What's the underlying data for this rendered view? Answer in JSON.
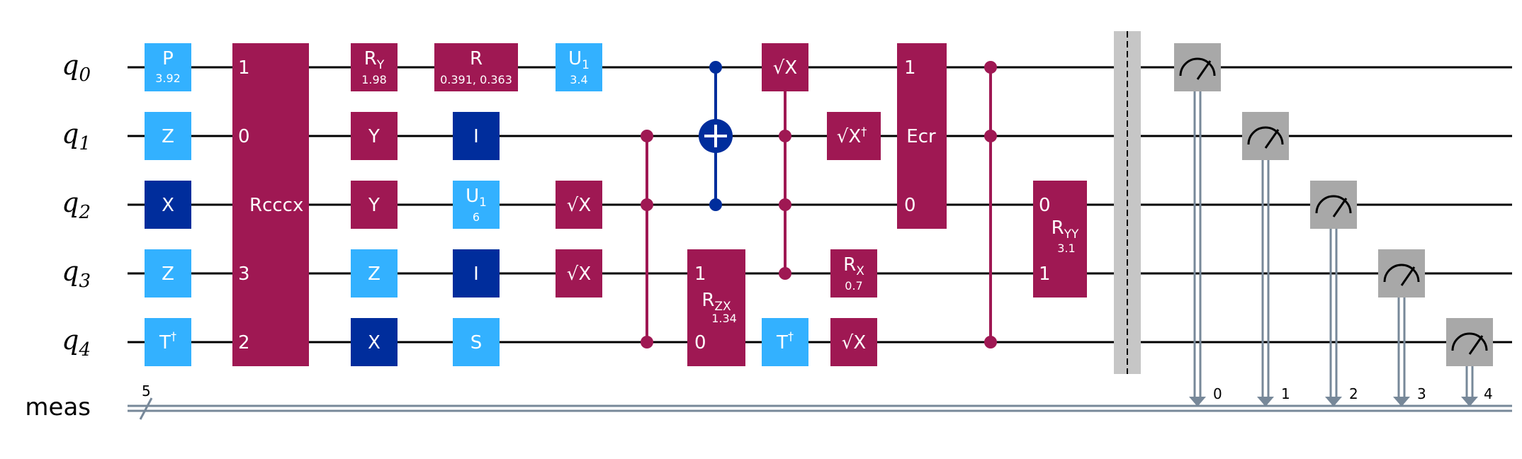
{
  "colors": {
    "light_blue": "#33b1ff",
    "dark_blue": "#002d9c",
    "magenta": "#9f1853",
    "gray": "#a8a8a8",
    "barrier": "#c6c6c6",
    "classical": "#778899",
    "wire": "#000000"
  },
  "wires": [
    {
      "id": "q0",
      "base": "q",
      "sub": "0"
    },
    {
      "id": "q1",
      "base": "q",
      "sub": "1"
    },
    {
      "id": "q2",
      "base": "q",
      "sub": "2"
    },
    {
      "id": "q3",
      "base": "q",
      "sub": "3"
    },
    {
      "id": "q4",
      "base": "q",
      "sub": "4"
    }
  ],
  "classical_register": {
    "name": "meas",
    "size": "5",
    "bits": [
      "0",
      "1",
      "2",
      "3",
      "4"
    ]
  },
  "gates": {
    "p_q0": {
      "name": "P",
      "param": "3.92"
    },
    "z_q1": {
      "name": "Z"
    },
    "x_q2": {
      "name": "X"
    },
    "z_q3": {
      "name": "Z"
    },
    "tdg_q4": {
      "name": "T",
      "sup": "†"
    },
    "rcccx": {
      "name": "Rcccx",
      "ports": [
        "1",
        "0",
        "3",
        "2"
      ]
    },
    "ry_q0": {
      "name": "R",
      "sub": "Y",
      "param": "1.98"
    },
    "y_q1": {
      "name": "Y"
    },
    "y_q2": {
      "name": "Y"
    },
    "z2_q3": {
      "name": "Z"
    },
    "x2_q4": {
      "name": "X"
    },
    "r_q0": {
      "name": "R",
      "param": "0.391, 0.363"
    },
    "i_q1": {
      "name": "I"
    },
    "u1_q2": {
      "name": "U",
      "sub": "1",
      "param": "6"
    },
    "i_q3": {
      "name": "I"
    },
    "s_q4": {
      "name": "S"
    },
    "u1_q0": {
      "name": "U",
      "sub": "1",
      "param": "3.4"
    },
    "sx_q2": {
      "name": "√X"
    },
    "sx_q3": {
      "name": "√X"
    },
    "rzx": {
      "name": "R",
      "sub": "ZX",
      "param": "1.34",
      "ports": [
        "1",
        "0"
      ]
    },
    "tdg2_q4": {
      "name": "T",
      "sup": "†"
    },
    "sx_q0": {
      "name": "√X"
    },
    "sxdg_q1": {
      "name": "√X",
      "sup": "†"
    },
    "rx_q3": {
      "name": "R",
      "sub": "X",
      "param": "0.7"
    },
    "sx_q4": {
      "name": "√X"
    },
    "ecr": {
      "name": "Ecr",
      "ports": [
        "1",
        "0"
      ]
    },
    "ryy": {
      "name": "R",
      "sub": "YY",
      "param": "3.1",
      "ports": [
        "0",
        "1"
      ]
    }
  }
}
